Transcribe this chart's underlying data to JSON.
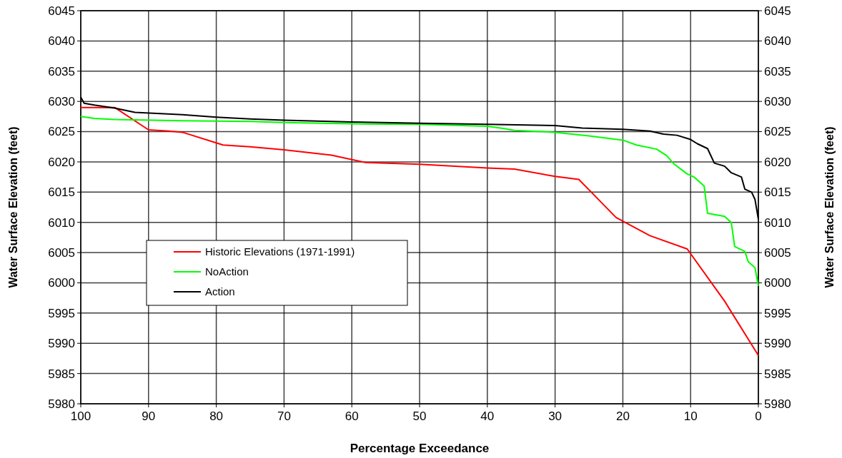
{
  "chart_data": {
    "type": "line",
    "xlabel": "Percentage Exceedance",
    "ylabel": "Water Surface Elevation (feet)",
    "y2label": "Water Surface Elevation (feet)",
    "xlim": [
      100,
      0
    ],
    "xticks": [
      100,
      90,
      80,
      70,
      60,
      50,
      40,
      30,
      20,
      10,
      0
    ],
    "ylim": [
      5980,
      6045
    ],
    "yticks": [
      5980,
      5985,
      5990,
      5995,
      6000,
      6005,
      6010,
      6015,
      6020,
      6025,
      6030,
      6035,
      6040,
      6045
    ],
    "y2lim": [
      5980,
      6045
    ],
    "y2ticks": [
      5980,
      5985,
      5990,
      5995,
      6000,
      6005,
      6010,
      6015,
      6020,
      6025,
      6030,
      6035,
      6040,
      6045
    ],
    "grid": true,
    "legend": "bottom left",
    "marker": "none",
    "line_style": "solid",
    "series": [
      {
        "name": "Historic Elevations (1971-1991)",
        "color": "#ff0000",
        "x": [
          100,
          95,
          90,
          87,
          85,
          79,
          75,
          70,
          63,
          58,
          50,
          40,
          36,
          30,
          26.5,
          21,
          16,
          10.5,
          5,
          0
        ],
        "values": [
          6029,
          6029,
          6025.3,
          6025.1,
          6024.9,
          6022.8,
          6022.5,
          6022,
          6021.1,
          6019.9,
          6019.6,
          6019,
          6018.8,
          6017.6,
          6017.1,
          6010.8,
          6007.8,
          6005.6,
          5997,
          5988
        ]
      },
      {
        "name": "NoAction",
        "color": "#00ff00",
        "x": [
          100,
          98,
          95,
          85,
          75,
          70,
          60,
          50,
          40,
          37.5,
          36,
          30,
          25,
          20,
          18,
          15,
          13.5,
          12.5,
          10.5,
          9.5,
          8,
          7.5,
          5,
          4,
          3.5,
          2,
          1.5,
          0.5,
          0
        ],
        "values": [
          6027.5,
          6027.2,
          6027,
          6026.8,
          6026.7,
          6026.5,
          6026.3,
          6026.2,
          6025.9,
          6025.5,
          6025.2,
          6024.9,
          6024.3,
          6023.6,
          6022.8,
          6022.1,
          6021,
          6019.7,
          6018,
          6017.5,
          6016,
          6011.5,
          6011,
          6010,
          6006,
          6005.2,
          6003.5,
          6002.5,
          5999.5
        ]
      },
      {
        "name": "Action",
        "color": "#000000",
        "x": [
          100,
          99.5,
          98,
          95,
          92,
          85,
          80,
          75,
          70,
          60,
          50,
          40,
          30,
          26,
          20,
          16,
          14,
          12,
          10,
          9,
          7.5,
          6.5,
          5,
          4,
          2.5,
          2,
          1,
          0.5,
          0
        ],
        "values": [
          6030.7,
          6029.7,
          6029.4,
          6028.9,
          6028.2,
          6027.8,
          6027.4,
          6027.1,
          6026.9,
          6026.6,
          6026.4,
          6026.2,
          6026,
          6025.6,
          6025.4,
          6025.1,
          6024.6,
          6024.4,
          6023.7,
          6023,
          6022.2,
          6019.8,
          6019.3,
          6018.2,
          6017.5,
          6015.5,
          6015,
          6013.8,
          6010.5
        ]
      }
    ]
  }
}
